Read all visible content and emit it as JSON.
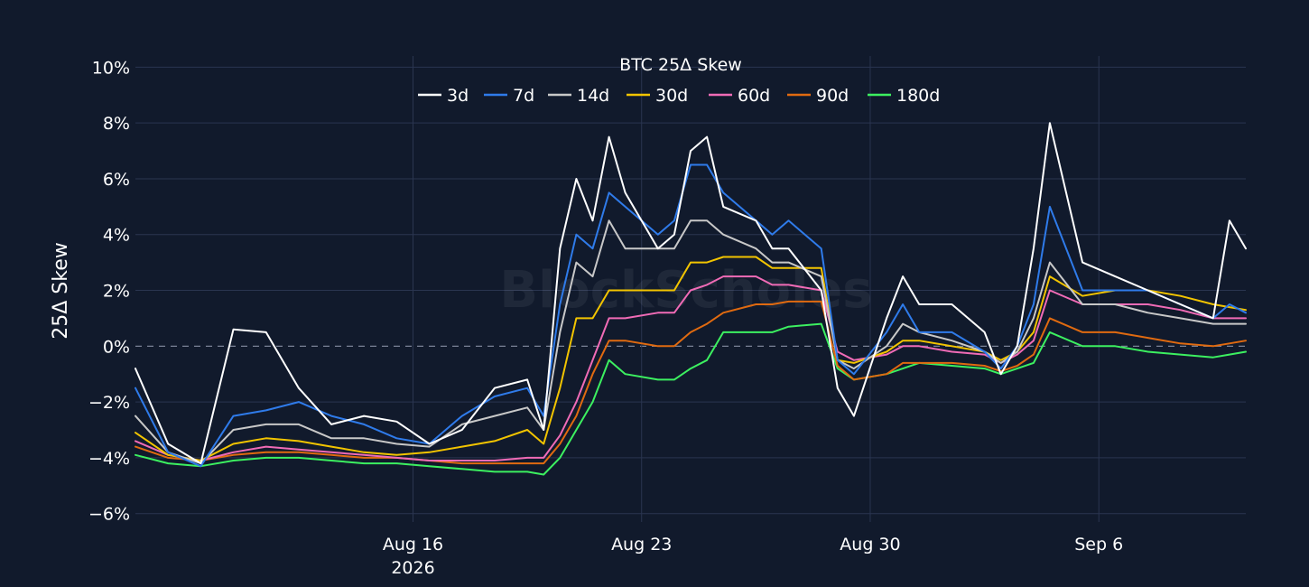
{
  "chart_data": {
    "type": "line",
    "title": "BTC 25Δ Skew",
    "ylabel": "25Δ Skew",
    "xlabel": "",
    "watermark": "BlockScholes",
    "x_range": [
      "2026-08-07T12:00",
      "2026-09-10T12:00"
    ],
    "ylim": [
      -6.3,
      10.4
    ],
    "y_ticks": [
      {
        "value": 10,
        "label": "10%"
      },
      {
        "value": 8,
        "label": "8%"
      },
      {
        "value": 6,
        "label": "6%"
      },
      {
        "value": 4,
        "label": "4%"
      },
      {
        "value": 2,
        "label": "2%"
      },
      {
        "value": 0,
        "label": "0%"
      },
      {
        "value": -2,
        "label": "−2%"
      },
      {
        "value": -4,
        "label": "−4%"
      },
      {
        "value": -6,
        "label": "−6%"
      }
    ],
    "x_ticks": [
      {
        "value": "2026-08-16",
        "label": "Aug 16",
        "sublabel": "2026"
      },
      {
        "value": "2026-08-23",
        "label": "Aug 23",
        "sublabel": ""
      },
      {
        "value": "2026-08-30",
        "label": "Aug 30",
        "sublabel": ""
      },
      {
        "value": "2026-09-06",
        "label": "Sep 6",
        "sublabel": ""
      }
    ],
    "grid": true,
    "zero_line": "dashed",
    "legend_position": "top-center",
    "colors": {
      "background": "#111a2c",
      "grid": "#2a3550",
      "zero_line": "#7a8296",
      "text": "#ffffff"
    },
    "x": [
      "2026-08-07T12:00",
      "2026-08-08T12:00",
      "2026-08-09T12:00",
      "2026-08-10T12:00",
      "2026-08-11T12:00",
      "2026-08-12T12:00",
      "2026-08-13T12:00",
      "2026-08-14T12:00",
      "2026-08-15T12:00",
      "2026-08-16T12:00",
      "2026-08-17T12:00",
      "2026-08-18T12:00",
      "2026-08-19T12:00",
      "2026-08-20T00:00",
      "2026-08-20T12:00",
      "2026-08-21T00:00",
      "2026-08-21T12:00",
      "2026-08-22T00:00",
      "2026-08-22T12:00",
      "2026-08-23T12:00",
      "2026-08-24T00:00",
      "2026-08-24T12:00",
      "2026-08-25T00:00",
      "2026-08-25T12:00",
      "2026-08-26T12:00",
      "2026-08-27T00:00",
      "2026-08-27T12:00",
      "2026-08-28T12:00",
      "2026-08-29T00:00",
      "2026-08-29T12:00",
      "2026-08-30T12:00",
      "2026-08-31T00:00",
      "2026-08-31T12:00",
      "2026-09-01T12:00",
      "2026-09-02T12:00",
      "2026-09-03T00:00",
      "2026-09-03T12:00",
      "2026-09-04T00:00",
      "2026-09-04T12:00",
      "2026-09-05T12:00",
      "2026-09-06T12:00",
      "2026-09-07T12:00",
      "2026-09-08T12:00",
      "2026-09-09T12:00",
      "2026-09-10T00:00",
      "2026-09-10T12:00"
    ],
    "series": [
      {
        "name": "3d",
        "color": "#ffffff",
        "values": [
          -0.8,
          -3.5,
          -4.2,
          0.6,
          0.5,
          -1.5,
          -2.8,
          -2.5,
          -2.7,
          -3.5,
          -3.0,
          -1.5,
          -1.2,
          -3.0,
          3.5,
          6.0,
          4.5,
          7.5,
          5.5,
          3.5,
          4.0,
          7.0,
          7.5,
          5.0,
          4.5,
          3.5,
          3.5,
          2.0,
          -1.5,
          -2.5,
          1.0,
          2.5,
          1.5,
          1.5,
          0.5,
          -1.0,
          0.0,
          3.5,
          8.0,
          3.0,
          2.5,
          2.0,
          1.5,
          1.0,
          4.5,
          3.5
        ]
      },
      {
        "name": "7d",
        "color": "#2f7bea",
        "values": [
          -1.5,
          -3.8,
          -4.3,
          -2.5,
          -2.3,
          -2.0,
          -2.5,
          -2.8,
          -3.3,
          -3.5,
          -2.5,
          -1.8,
          -1.5,
          -2.5,
          1.5,
          4.0,
          3.5,
          5.5,
          5.0,
          4.0,
          4.5,
          6.5,
          6.5,
          5.5,
          4.5,
          4.0,
          4.5,
          3.5,
          -0.5,
          -1.0,
          0.5,
          1.5,
          0.5,
          0.5,
          -0.2,
          -0.8,
          0.0,
          1.5,
          5.0,
          2.0,
          2.0,
          2.0,
          1.5,
          1.0,
          1.5,
          1.2
        ]
      },
      {
        "name": "14d",
        "color": "#c8c8c8",
        "values": [
          -2.5,
          -3.8,
          -4.2,
          -3.0,
          -2.8,
          -2.8,
          -3.3,
          -3.3,
          -3.5,
          -3.6,
          -2.8,
          -2.5,
          -2.2,
          -3.0,
          0.5,
          3.0,
          2.5,
          4.5,
          3.5,
          3.5,
          3.5,
          4.5,
          4.5,
          4.0,
          3.5,
          3.0,
          3.0,
          2.5,
          -0.5,
          -0.8,
          0.0,
          0.8,
          0.5,
          0.2,
          -0.2,
          -0.6,
          -0.2,
          1.0,
          3.0,
          1.5,
          1.5,
          1.2,
          1.0,
          0.8,
          0.8,
          0.8
        ]
      },
      {
        "name": "30d",
        "color": "#f2c400",
        "values": [
          -3.1,
          -3.9,
          -4.1,
          -3.5,
          -3.3,
          -3.4,
          -3.6,
          -3.8,
          -3.9,
          -3.8,
          -3.6,
          -3.4,
          -3.0,
          -3.5,
          -1.5,
          1.0,
          1.0,
          2.0,
          2.0,
          2.0,
          2.0,
          3.0,
          3.0,
          3.2,
          3.2,
          2.8,
          2.8,
          2.8,
          -0.5,
          -0.6,
          -0.2,
          0.2,
          0.2,
          0.0,
          -0.2,
          -0.5,
          -0.2,
          0.5,
          2.5,
          1.8,
          2.0,
          2.0,
          1.8,
          1.5,
          1.4,
          1.3
        ]
      },
      {
        "name": "60d",
        "color": "#f06bb6",
        "values": [
          -3.4,
          -3.9,
          -4.1,
          -3.8,
          -3.6,
          -3.7,
          -3.8,
          -3.9,
          -4.0,
          -4.1,
          -4.1,
          -4.1,
          -4.0,
          -4.0,
          -3.2,
          -2.0,
          -0.5,
          1.0,
          1.0,
          1.2,
          1.2,
          2.0,
          2.2,
          2.5,
          2.5,
          2.2,
          2.2,
          2.0,
          -0.2,
          -0.5,
          -0.3,
          0.0,
          0.0,
          -0.2,
          -0.3,
          -0.6,
          -0.3,
          0.2,
          2.0,
          1.5,
          1.5,
          1.5,
          1.3,
          1.0,
          1.0,
          1.0
        ]
      },
      {
        "name": "90d",
        "color": "#e06a10",
        "values": [
          -3.6,
          -4.0,
          -4.1,
          -3.9,
          -3.8,
          -3.8,
          -3.9,
          -4.0,
          -4.0,
          -4.1,
          -4.2,
          -4.2,
          -4.2,
          -4.2,
          -3.5,
          -2.5,
          -1.0,
          0.2,
          0.2,
          0.0,
          0.0,
          0.5,
          0.8,
          1.2,
          1.5,
          1.5,
          1.6,
          1.6,
          -0.7,
          -1.2,
          -1.0,
          -0.6,
          -0.6,
          -0.6,
          -0.7,
          -0.9,
          -0.7,
          -0.3,
          1.0,
          0.5,
          0.5,
          0.3,
          0.1,
          0.0,
          0.1,
          0.2
        ]
      },
      {
        "name": "180d",
        "color": "#3cf060",
        "values": [
          -3.9,
          -4.2,
          -4.3,
          -4.1,
          -4.0,
          -4.0,
          -4.1,
          -4.2,
          -4.2,
          -4.3,
          -4.4,
          -4.5,
          -4.5,
          -4.6,
          -4.0,
          -3.0,
          -2.0,
          -0.5,
          -1.0,
          -1.2,
          -1.2,
          -0.8,
          -0.5,
          0.5,
          0.5,
          0.5,
          0.7,
          0.8,
          -0.8,
          -1.2,
          -1.0,
          -0.8,
          -0.6,
          -0.7,
          -0.8,
          -1.0,
          -0.8,
          -0.6,
          0.5,
          0.0,
          0.0,
          -0.2,
          -0.3,
          -0.4,
          -0.3,
          -0.2
        ]
      }
    ]
  }
}
